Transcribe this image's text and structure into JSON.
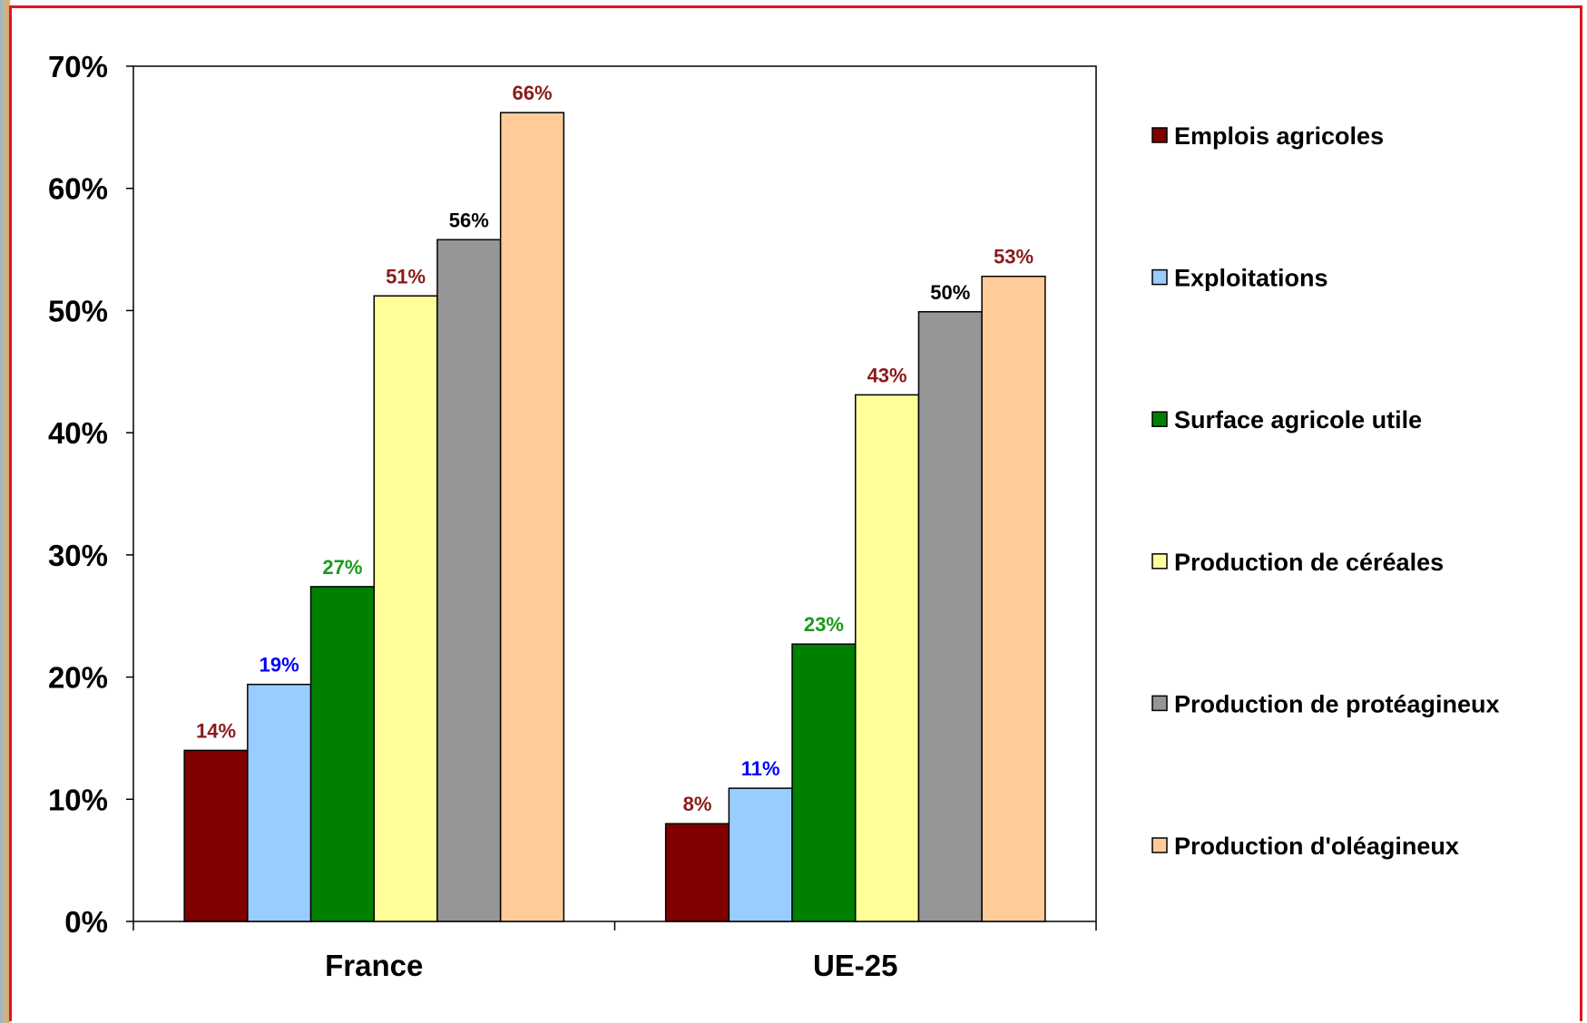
{
  "chart_data": {
    "type": "bar",
    "title": "",
    "xlabel": "",
    "ylabel": "",
    "ylim": [
      0,
      70
    ],
    "y_ticks": [
      0,
      10,
      20,
      30,
      40,
      50,
      60,
      70
    ],
    "y_tick_labels": [
      "0%",
      "10%",
      "20%",
      "30%",
      "40%",
      "50%",
      "60%",
      "70%"
    ],
    "categories": [
      "France",
      "UE-25"
    ],
    "legend_position": "right",
    "grid": false,
    "series": [
      {
        "name": "Emplois agricoles",
        "values": [
          14,
          8
        ],
        "labels": [
          "14%",
          "8%"
        ],
        "color": "#800000",
        "label_color": "#8b1a1a"
      },
      {
        "name": "Exploitations",
        "values": [
          19.4,
          10.9
        ],
        "labels": [
          "19%",
          "11%"
        ],
        "color": "#99ccff",
        "label_color": "#0000ff"
      },
      {
        "name": "Surface agricole utile",
        "values": [
          27.4,
          22.7
        ],
        "labels": [
          "27%",
          "23%"
        ],
        "color": "#008000",
        "label_color": "#1a9a1a"
      },
      {
        "name": "Production de céréales",
        "values": [
          51.2,
          43.1
        ],
        "labels": [
          "51%",
          "43%"
        ],
        "color": "#ffff99",
        "label_color": "#8b1a1a"
      },
      {
        "name": "Production de protéagineux",
        "values": [
          55.8,
          49.9
        ],
        "labels": [
          "56%",
          "50%"
        ],
        "color": "#969696",
        "label_color": "#000000"
      },
      {
        "name": "Production d'oléagineux",
        "values": [
          66.2,
          52.8
        ],
        "labels": [
          "66%",
          "53%"
        ],
        "color": "#ffcc99",
        "label_color": "#8b1a1a"
      }
    ]
  }
}
